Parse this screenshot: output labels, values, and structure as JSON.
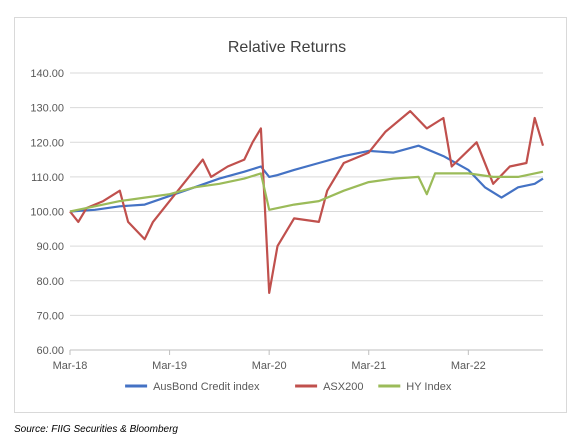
{
  "chart_data": {
    "type": "line",
    "title": "Relative Returns",
    "xlabel": "",
    "ylabel": "",
    "ylim": [
      60,
      140
    ],
    "y_ticks": [
      "60.00",
      "70.00",
      "80.00",
      "90.00",
      "100.00",
      "110.00",
      "120.00",
      "130.00",
      "140.00"
    ],
    "x_tick_labels": [
      "Mar-18",
      "Mar-19",
      "Mar-20",
      "Mar-21",
      "Mar-22"
    ],
    "x_ticks": [
      "2018-03",
      "2019-03",
      "2020-03",
      "2021-03",
      "2022-03"
    ],
    "xlim": [
      "2018-03",
      "2022-12"
    ],
    "grid": "horizontal",
    "legend_position": "bottom",
    "series": [
      {
        "name": "AusBond Credit index",
        "color": "#4472c4",
        "points": [
          [
            "2018-03",
            100.0
          ],
          [
            "2018-06",
            100.5
          ],
          [
            "2018-09",
            101.5
          ],
          [
            "2018-12",
            102.0
          ],
          [
            "2019-03",
            104.5
          ],
          [
            "2019-06",
            107.0
          ],
          [
            "2019-09",
            109.5
          ],
          [
            "2019-12",
            111.5
          ],
          [
            "2020-02",
            113.0
          ],
          [
            "2020-03",
            110.0
          ],
          [
            "2020-04",
            110.5
          ],
          [
            "2020-06",
            112.0
          ],
          [
            "2020-09",
            114.0
          ],
          [
            "2020-12",
            116.0
          ],
          [
            "2021-03",
            117.5
          ],
          [
            "2021-06",
            117.0
          ],
          [
            "2021-09",
            119.0
          ],
          [
            "2021-12",
            116.0
          ],
          [
            "2022-03",
            112.0
          ],
          [
            "2022-05",
            107.0
          ],
          [
            "2022-07",
            104.0
          ],
          [
            "2022-09",
            107.0
          ],
          [
            "2022-11",
            108.0
          ],
          [
            "2022-12",
            109.5
          ]
        ]
      },
      {
        "name": "ASX200",
        "color": "#c0504d",
        "points": [
          [
            "2018-03",
            100.0
          ],
          [
            "2018-04",
            97.0
          ],
          [
            "2018-05",
            101.0
          ],
          [
            "2018-07",
            103.0
          ],
          [
            "2018-09",
            106.0
          ],
          [
            "2018-10",
            97.0
          ],
          [
            "2018-12",
            92.0
          ],
          [
            "2019-01",
            97.0
          ],
          [
            "2019-03",
            103.0
          ],
          [
            "2019-05",
            109.0
          ],
          [
            "2019-07",
            115.0
          ],
          [
            "2019-08",
            110.0
          ],
          [
            "2019-10",
            113.0
          ],
          [
            "2019-12",
            115.0
          ],
          [
            "2020-01",
            120.0
          ],
          [
            "2020-02",
            124.0
          ],
          [
            "2020-03",
            76.5
          ],
          [
            "2020-04",
            90.0
          ],
          [
            "2020-06",
            98.0
          ],
          [
            "2020-09",
            97.0
          ],
          [
            "2020-10",
            106.0
          ],
          [
            "2020-12",
            114.0
          ],
          [
            "2021-03",
            117.0
          ],
          [
            "2021-05",
            123.0
          ],
          [
            "2021-08",
            129.0
          ],
          [
            "2021-10",
            124.0
          ],
          [
            "2021-12",
            127.0
          ],
          [
            "2022-01",
            113.0
          ],
          [
            "2022-04",
            120.0
          ],
          [
            "2022-06",
            108.0
          ],
          [
            "2022-08",
            113.0
          ],
          [
            "2022-10",
            114.0
          ],
          [
            "2022-11",
            127.0
          ],
          [
            "2022-12",
            119.0
          ]
        ]
      },
      {
        "name": "HY Index",
        "color": "#9bbb59",
        "points": [
          [
            "2018-03",
            100.0
          ],
          [
            "2018-06",
            101.5
          ],
          [
            "2018-09",
            103.0
          ],
          [
            "2018-12",
            104.0
          ],
          [
            "2019-03",
            105.0
          ],
          [
            "2019-06",
            107.0
          ],
          [
            "2019-09",
            108.0
          ],
          [
            "2019-12",
            109.5
          ],
          [
            "2020-02",
            111.0
          ],
          [
            "2020-03",
            100.5
          ],
          [
            "2020-06",
            102.0
          ],
          [
            "2020-09",
            103.0
          ],
          [
            "2020-12",
            106.0
          ],
          [
            "2021-03",
            108.5
          ],
          [
            "2021-06",
            109.5
          ],
          [
            "2021-09",
            110.0
          ],
          [
            "2021-10",
            105.0
          ],
          [
            "2021-11",
            111.0
          ],
          [
            "2022-03",
            111.0
          ],
          [
            "2022-06",
            110.0
          ],
          [
            "2022-09",
            110.0
          ],
          [
            "2022-12",
            111.5
          ]
        ]
      }
    ]
  },
  "source": "Source: FIIG Securities & Bloomberg"
}
